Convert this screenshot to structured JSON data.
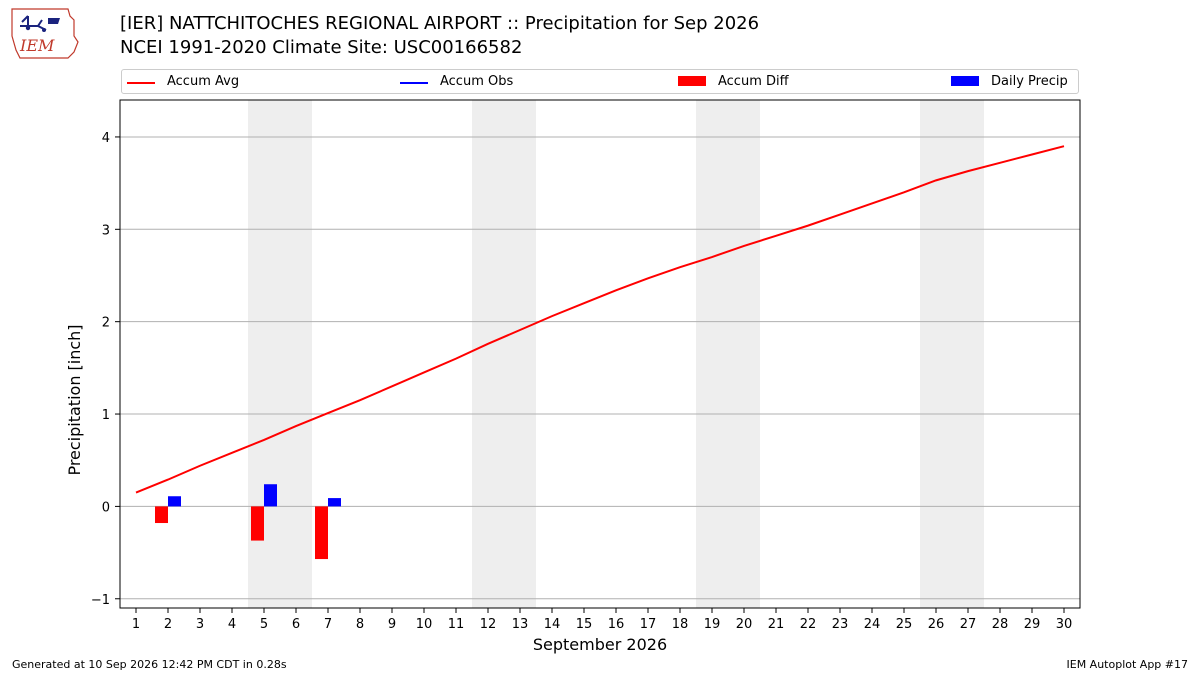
{
  "header": {
    "title_line1": "[IER] NATTCHITOCHES REGIONAL AIRPORT :: Precipitation for Sep 2026",
    "title_line2": "NCEI 1991-2020 Climate Site: USC00166582",
    "logo_text": "IEM"
  },
  "footer": {
    "generated": "Generated at 10 Sep 2026 12:42 PM CDT in 0.28s",
    "app": "IEM Autoplot App #17"
  },
  "colors": {
    "accum_avg": "#ff0000",
    "accum_obs": "#0000ff",
    "accum_diff": "#ff0000",
    "daily_precip": "#0000ff",
    "weekend_shade": "#eeeeee",
    "grid": "#b0b0b0"
  },
  "chart_data": {
    "type": "bar",
    "title": "[IER] NATTCHITOCHES REGIONAL AIRPORT :: Precipitation for Sep 2026",
    "xlabel": "September 2026",
    "ylabel": "Precipitation [inch]",
    "xlim": [
      0.5,
      30.5
    ],
    "ylim": [
      -1.1,
      4.4
    ],
    "x_ticks": [
      1,
      2,
      3,
      4,
      5,
      6,
      7,
      8,
      9,
      10,
      11,
      12,
      13,
      14,
      15,
      16,
      17,
      18,
      19,
      20,
      21,
      22,
      23,
      24,
      25,
      26,
      27,
      28,
      29,
      30
    ],
    "y_ticks": [
      -1,
      0,
      1,
      2,
      3,
      4
    ],
    "grid": "horizontal",
    "legend_position": "top",
    "legend": [
      "Accum Avg",
      "Accum Obs",
      "Accum Diff",
      "Daily Precip"
    ],
    "weekend_days": [
      5,
      6,
      12,
      13,
      19,
      20,
      26,
      27
    ],
    "series": [
      {
        "name": "Accum Avg",
        "kind": "line",
        "x": [
          1,
          2,
          3,
          4,
          5,
          6,
          7,
          8,
          9,
          10,
          11,
          12,
          13,
          14,
          15,
          16,
          17,
          18,
          19,
          20,
          21,
          22,
          23,
          24,
          25,
          26,
          27,
          28,
          29,
          30
        ],
        "values": [
          0.15,
          0.29,
          0.44,
          0.58,
          0.72,
          0.87,
          1.01,
          1.15,
          1.3,
          1.45,
          1.6,
          1.76,
          1.91,
          2.06,
          2.2,
          2.34,
          2.47,
          2.59,
          2.7,
          2.82,
          2.93,
          3.04,
          3.16,
          3.28,
          3.4,
          3.53,
          3.63,
          3.72,
          3.81,
          3.9
        ]
      },
      {
        "name": "Accum Obs",
        "kind": "line",
        "x": [],
        "values": []
      },
      {
        "name": "Accum Diff",
        "kind": "bar",
        "x": [
          2,
          5,
          7
        ],
        "values": [
          -0.18,
          -0.37,
          -0.57
        ]
      },
      {
        "name": "Daily Precip",
        "kind": "bar",
        "x": [
          2,
          5,
          7
        ],
        "values": [
          0.11,
          0.24,
          0.09
        ]
      }
    ]
  }
}
